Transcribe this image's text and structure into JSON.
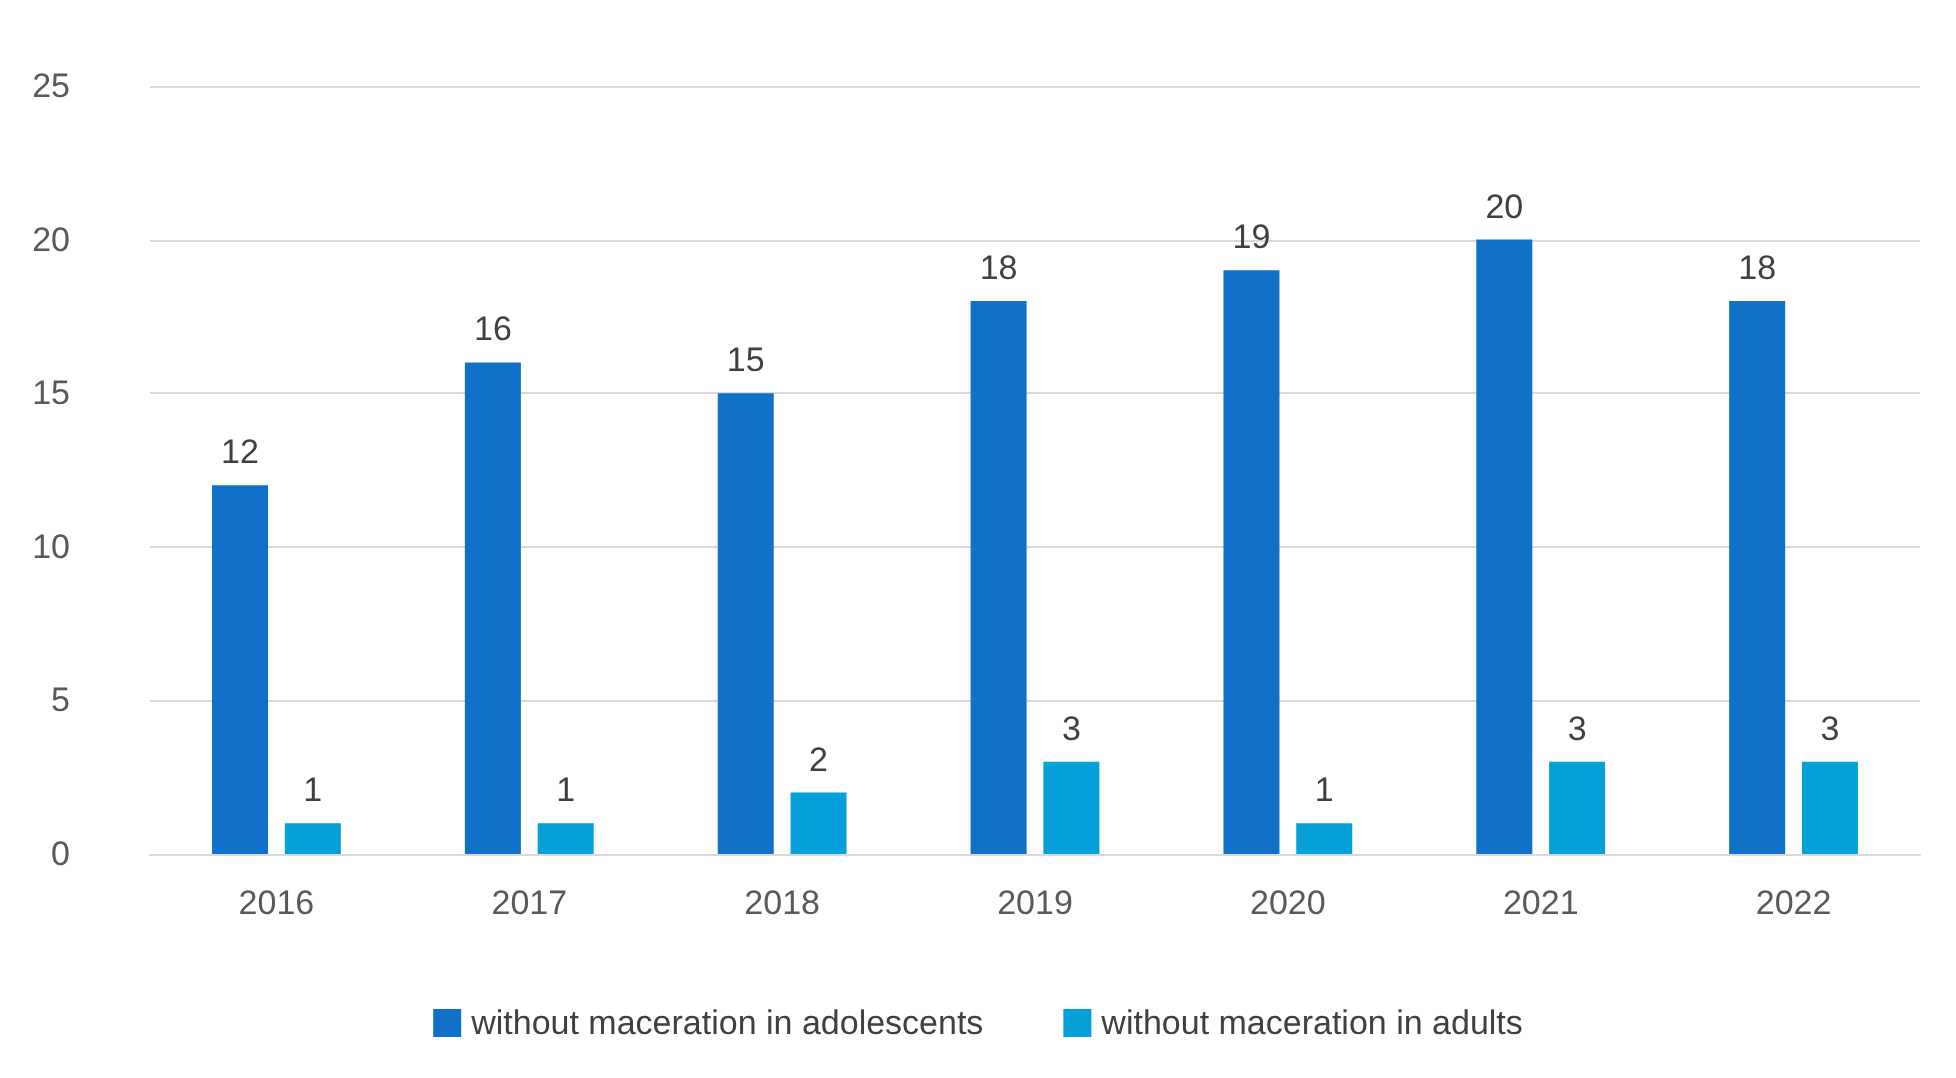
{
  "chart_data": {
    "type": "bar",
    "categories": [
      "2016",
      "2017",
      "2018",
      "2019",
      "2020",
      "2021",
      "2022"
    ],
    "series": [
      {
        "name": "without maceration in adolescents",
        "color": "#1170c8",
        "values": [
          12,
          16,
          15,
          18,
          19,
          20,
          18
        ]
      },
      {
        "name": "without maceration in adults",
        "color": "#06a0d8",
        "values": [
          1,
          1,
          2,
          3,
          1,
          3,
          3
        ]
      }
    ],
    "ylim": [
      0,
      25
    ],
    "yticks": [
      0,
      5,
      10,
      15,
      20,
      25
    ],
    "grid": "y",
    "legend": "bottom",
    "data_labels": true
  }
}
